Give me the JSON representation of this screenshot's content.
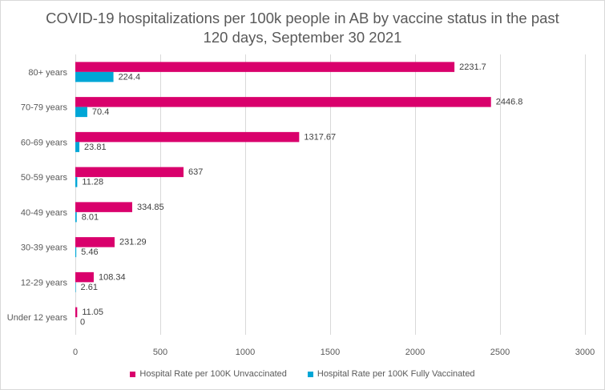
{
  "chart_data": {
    "type": "bar",
    "orientation": "horizontal",
    "title_lines": [
      "COVID-19 hospitalizations per 100k people in AB by vaccine status in the past",
      "120 days, September 30 2021"
    ],
    "categories": [
      "80+ years",
      "70-79 years",
      "60-69 years",
      "50-59 years",
      "40-49 years",
      "30-39 years",
      "12-29 years",
      "Under 12 years"
    ],
    "series": [
      {
        "name": "Hospital Rate per 100K Unvaccinated",
        "color": "#d9006c",
        "values": [
          2231.7,
          2446.8,
          1317.67,
          637,
          334.85,
          231.29,
          108.34,
          11.05
        ],
        "labels": [
          "2231.7",
          "2446.8",
          "1317.67",
          "637",
          "334.85",
          "231.29",
          "108.34",
          "11.05"
        ]
      },
      {
        "name": "Hospital Rate per 100K Fully Vaccinated",
        "color": "#00a6d6",
        "values": [
          224.4,
          70.4,
          23.81,
          11.28,
          8.01,
          5.46,
          2.61,
          0
        ],
        "labels": [
          "224.4",
          "70.4",
          "23.81",
          "11.28",
          "8.01",
          "5.46",
          "2.61",
          "0"
        ]
      }
    ],
    "x_ticks": [
      0,
      500,
      1000,
      1500,
      2000,
      2500,
      3000
    ],
    "xlim": [
      0,
      3000
    ],
    "grid": "vertical",
    "legend_position": "bottom",
    "xlabel": "",
    "ylabel": ""
  }
}
